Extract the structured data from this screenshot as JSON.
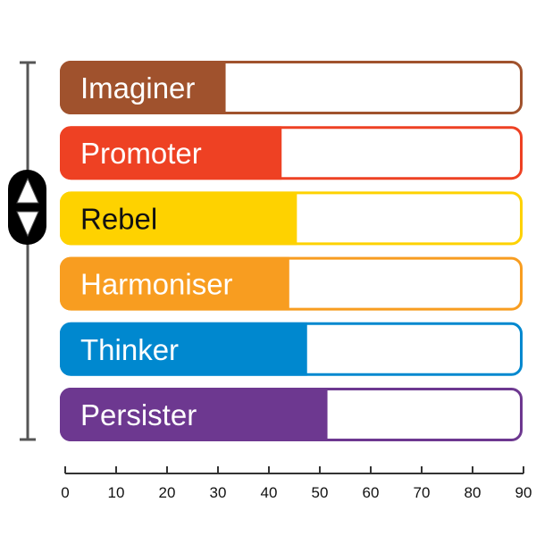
{
  "chart_data": {
    "type": "bar",
    "orientation": "horizontal",
    "categories": [
      "Imaginer",
      "Promoter",
      "Rebel",
      "Harmoniser",
      "Thinker",
      "Persister"
    ],
    "values": [
      31.5,
      42.5,
      45.5,
      44,
      47.5,
      51.5
    ],
    "xlim": [
      0,
      90
    ],
    "xticks": [
      "0",
      "10",
      "20",
      "30",
      "40",
      "50",
      "60",
      "70",
      "80",
      "90"
    ],
    "colors": [
      "#a0522d",
      "#ee4123",
      "#fed200",
      "#f89d20",
      "#0088cf",
      "#6d3890"
    ],
    "label_colors": [
      "#ffffff",
      "#ffffff",
      "#111111",
      "#ffffff",
      "#ffffff",
      "#ffffff"
    ],
    "grid": false,
    "scroll_control": {
      "icons": [
        "up-arrow-icon",
        "down-arrow-icon"
      ]
    }
  }
}
